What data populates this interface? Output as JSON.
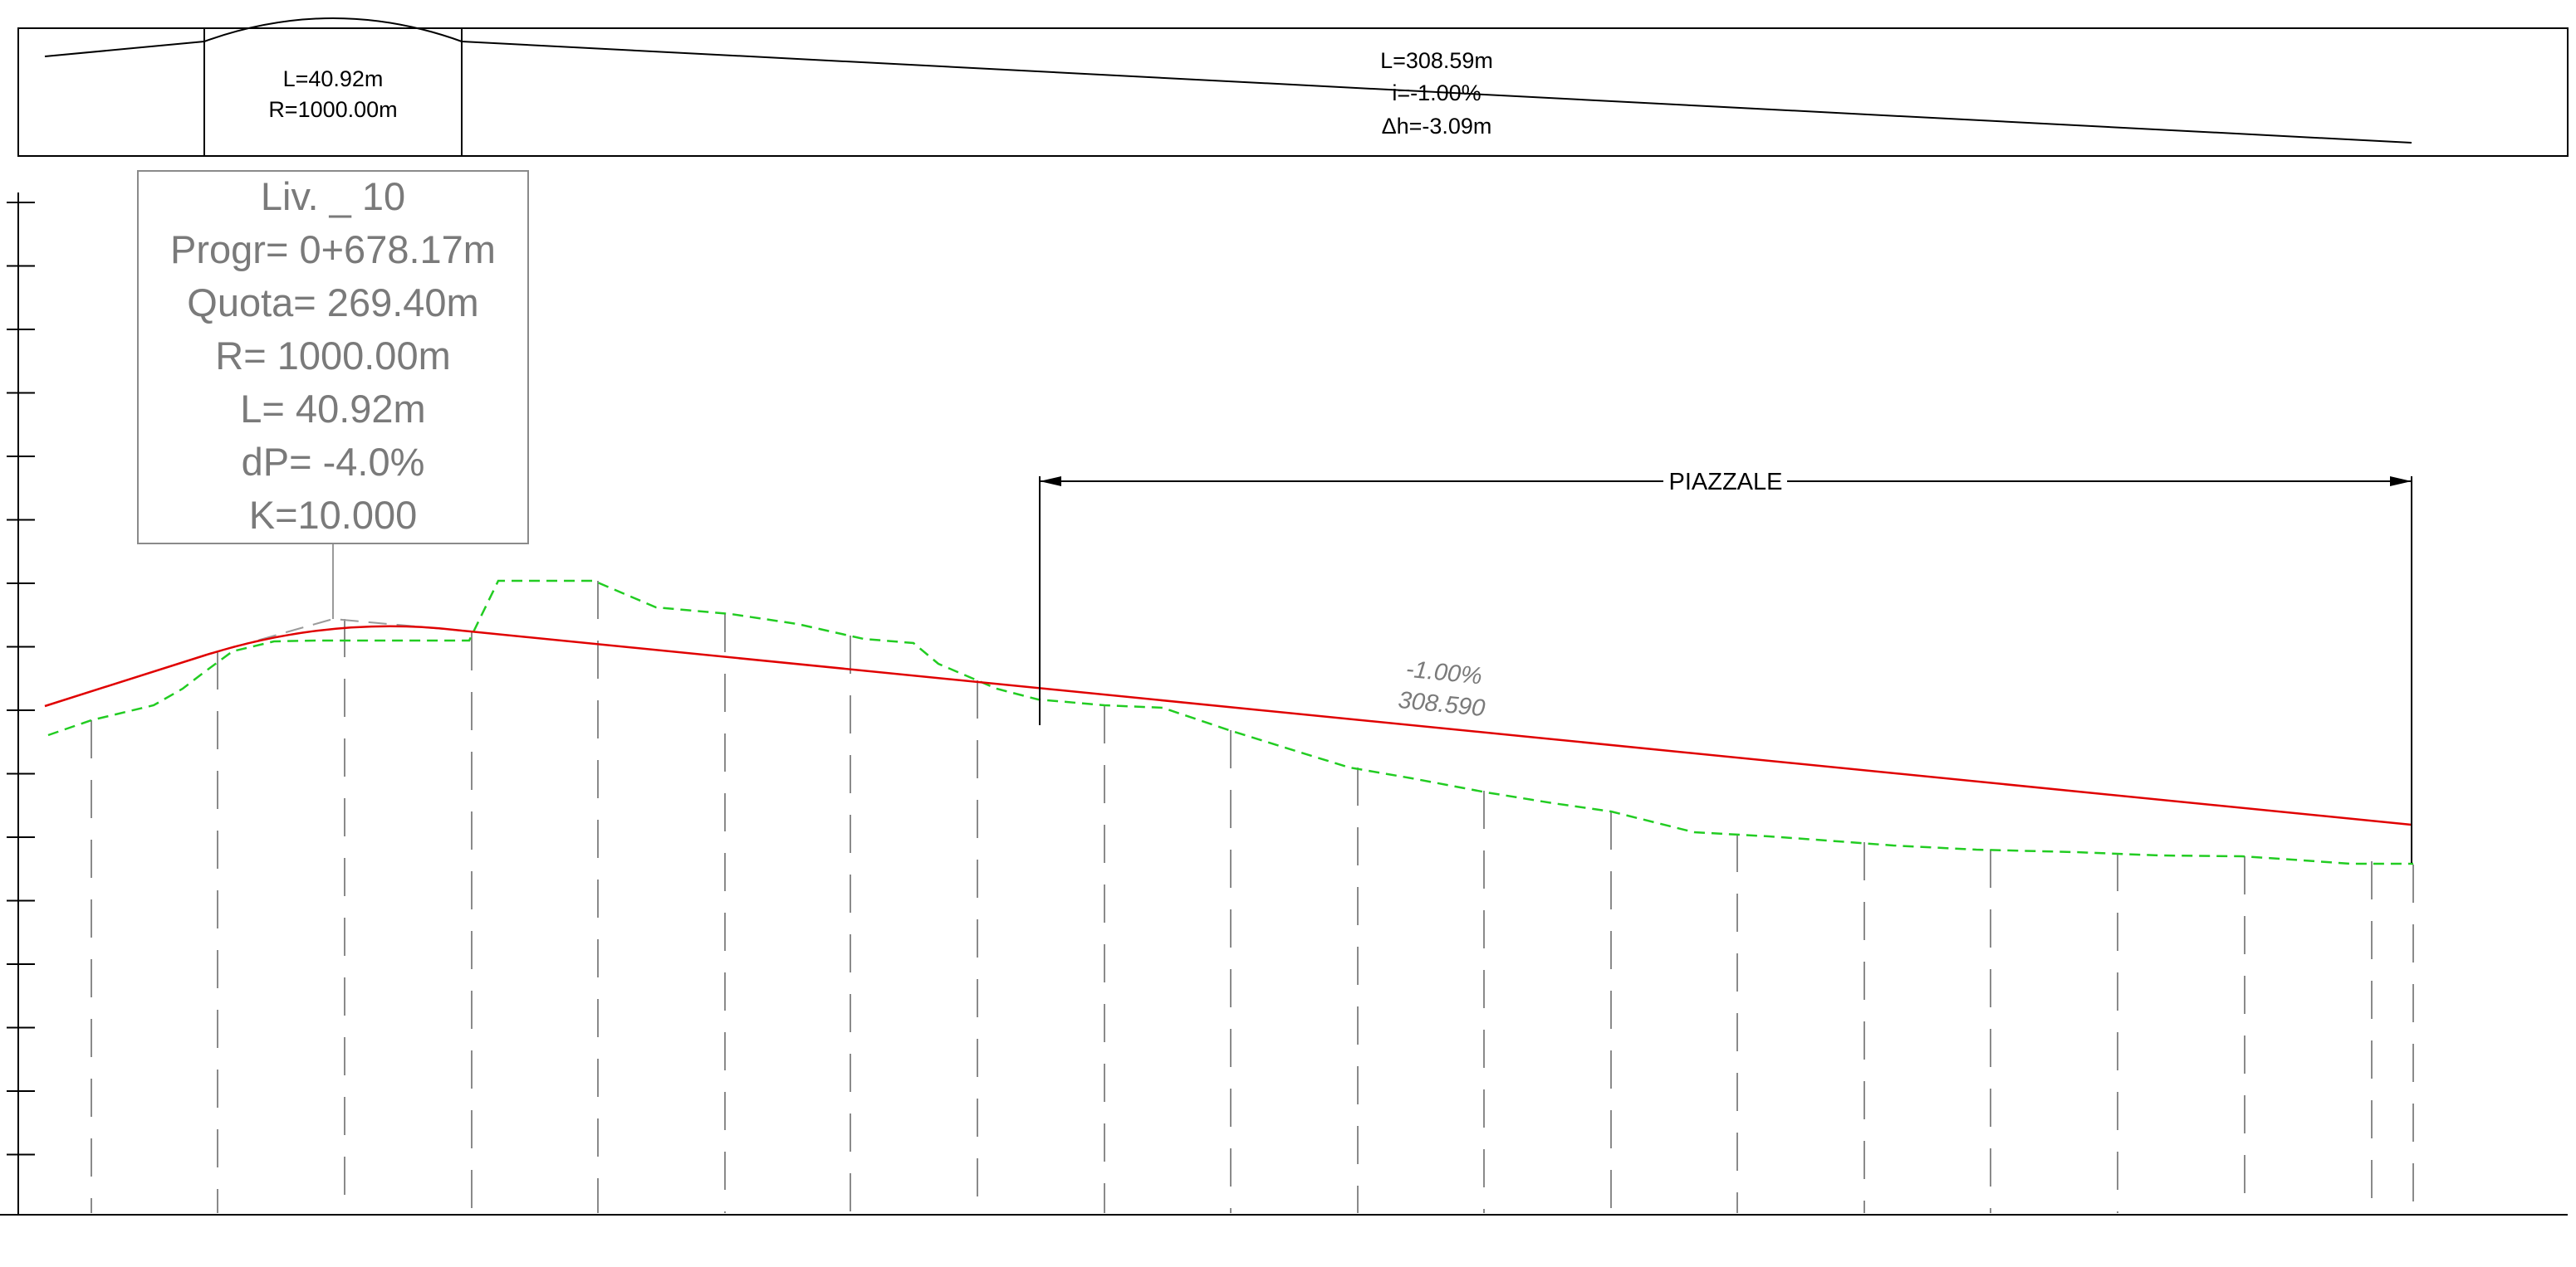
{
  "alignment_band": {
    "vertical_curve": {
      "length_label": "L=40.92m",
      "radius_label": "R=1000.00m"
    },
    "tangent": {
      "length_label": "L=308.59m",
      "grade_label": "i=-1.00%",
      "delta_h_label": "Δh=-3.09m"
    }
  },
  "vertex_callout": {
    "lines": [
      "Liv. _ 10",
      "Progr= 0+678.17m",
      "Quota= 269.40m",
      "R= 1000.00m",
      "L= 40.92m",
      "dP= -4.0%",
      "K=10.000"
    ]
  },
  "grade_annotation": {
    "slope": "-1.00%",
    "length": "308.590"
  },
  "piazzale_dimension": {
    "label": "PIAZZALE"
  },
  "colors": {
    "design_profile": "#e00000",
    "ground_profile": "#00cc00",
    "station_lines": "#888888",
    "callout_text": "#7a7a7a",
    "frame": "#000000"
  }
}
